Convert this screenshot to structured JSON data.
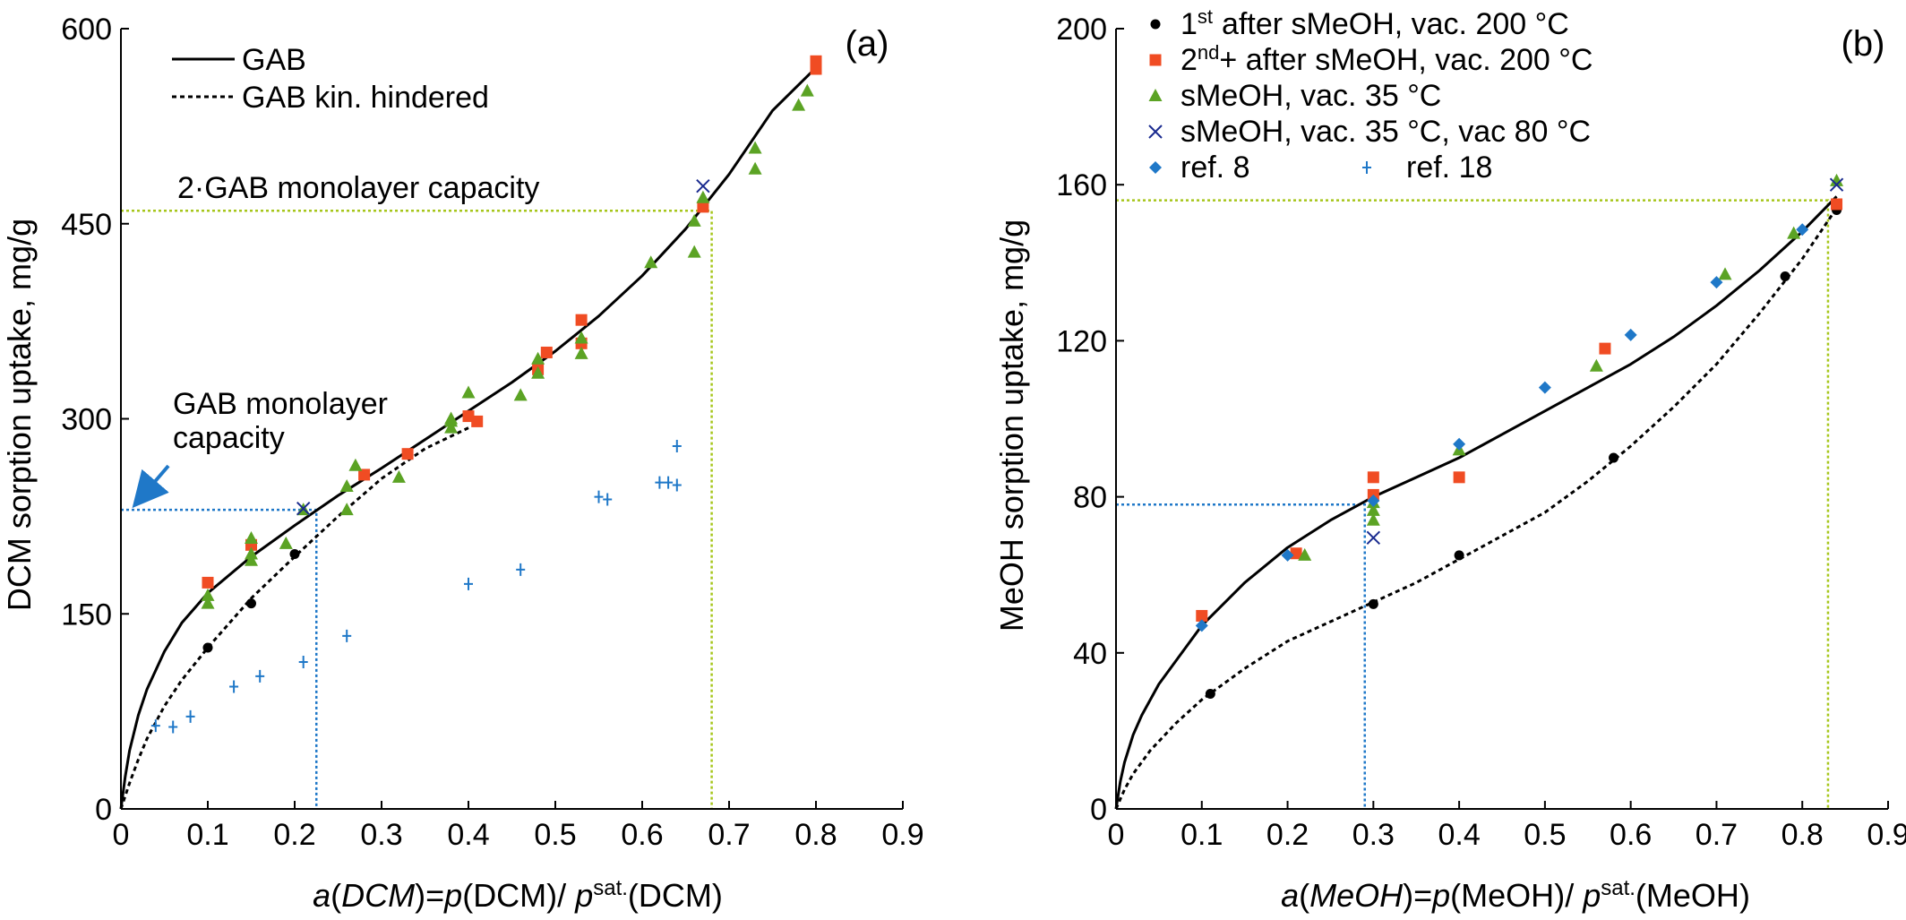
{
  "chart_data": [
    {
      "type": "scatter",
      "panel_label": "(a)",
      "xlabel": {
        "a": "a",
        "var": "DCM",
        "eq": "=",
        "p": "p",
        "gas": "DCM",
        "sep": "/ ",
        "p2": "p",
        "sup": "sat.",
        "gas2": "DCM"
      },
      "ylabel": "DCM sorption uptake, mg/g",
      "xlim": [
        0,
        0.9
      ],
      "ylim": [
        0,
        600
      ],
      "xticks": [
        "0",
        "0.1",
        "0.2",
        "0.3",
        "0.4",
        "0.5",
        "0.6",
        "0.7",
        "0.8",
        "0.9"
      ],
      "yticks": [
        "0",
        "150",
        "300",
        "450",
        "600"
      ],
      "legend": {
        "position": "top-left",
        "entries": [
          "GAB",
          "GAB kin. hindered"
        ]
      },
      "annotations": {
        "monolayer_label_line1": "GAB monolayer",
        "monolayer_label_line2": "capacity",
        "double_monolayer_label": "2·GAB monolayer capacity"
      },
      "monolayer": {
        "x": 0.225,
        "y": 230
      },
      "double_monolayer": {
        "x": 0.68,
        "y": 460
      },
      "colors": {
        "gab_line": "#000000",
        "kin_line": "#000000",
        "monolayer_guide": "#1f78c8",
        "double_guide": "#a6c61a",
        "arrow": "#1f78c8"
      },
      "lines": [
        {
          "name": "GAB",
          "style": "solid",
          "x": [
            0,
            0.005,
            0.01,
            0.02,
            0.03,
            0.05,
            0.07,
            0.1,
            0.15,
            0.2,
            0.25,
            0.3,
            0.35,
            0.4,
            0.45,
            0.5,
            0.55,
            0.6,
            0.65,
            0.7,
            0.75,
            0.8
          ],
          "y": [
            0,
            25,
            45,
            72,
            92,
            121,
            143,
            166,
            194,
            218,
            241,
            262,
            284,
            306,
            328,
            352,
            379,
            410,
            446,
            488,
            537,
            570
          ]
        },
        {
          "name": "GAB kin. hindered",
          "style": "dashed",
          "x": [
            0,
            0.01,
            0.02,
            0.03,
            0.05,
            0.07,
            0.1,
            0.15,
            0.2,
            0.25,
            0.3,
            0.35,
            0.4
          ],
          "y": [
            0,
            20,
            38,
            54,
            79,
            99,
            124,
            162,
            194,
            225,
            254,
            277,
            293
          ]
        }
      ],
      "series": [
        {
          "name": "1st after sMeOH, vac. 200 °C",
          "marker": "circle",
          "color": "#000000",
          "x": [
            0.1,
            0.15,
            0.2
          ],
          "y": [
            124,
            158,
            196
          ]
        },
        {
          "name": "2nd+ after sMeOH, vac. 200 °C",
          "marker": "square",
          "color": "#f04c23",
          "x": [
            0.1,
            0.15,
            0.28,
            0.33,
            0.4,
            0.41,
            0.48,
            0.49,
            0.53,
            0.53,
            0.67,
            0.8,
            0.8
          ],
          "y": [
            174,
            203,
            257,
            273,
            302,
            298,
            338,
            351,
            358,
            376,
            463,
            575,
            569
          ]
        },
        {
          "name": "sMeOH, vac. 35 °C",
          "marker": "triangle",
          "color": "#5ba324",
          "x": [
            0.1,
            0.1,
            0.15,
            0.15,
            0.15,
            0.19,
            0.21,
            0.26,
            0.26,
            0.27,
            0.32,
            0.38,
            0.38,
            0.38,
            0.4,
            0.46,
            0.48,
            0.48,
            0.53,
            0.53,
            0.61,
            0.66,
            0.66,
            0.67,
            0.73,
            0.73,
            0.78,
            0.79
          ],
          "y": [
            164,
            158,
            191,
            208,
            196,
            204,
            230,
            230,
            248,
            264,
            255,
            300,
            298,
            293,
            320,
            318,
            335,
            346,
            350,
            362,
            420,
            428,
            452,
            470,
            508,
            492,
            541,
            552
          ]
        },
        {
          "name": "sMeOH, vac. 35 °C, vac 80 °C",
          "marker": "x",
          "color": "#1a2b8f",
          "x": [
            0.21,
            0.67
          ],
          "y": [
            231,
            479
          ]
        },
        {
          "name": "ref. 18",
          "marker": "plus",
          "color": "#1f78c8",
          "x": [
            0.04,
            0.06,
            0.08,
            0.13,
            0.16,
            0.21,
            0.26,
            0.4,
            0.46,
            0.55,
            0.56,
            0.62,
            0.63,
            0.64,
            0.64
          ],
          "y": [
            64,
            63,
            71,
            94,
            102,
            113,
            133,
            173,
            184,
            240,
            238,
            251,
            251,
            249,
            279
          ]
        }
      ]
    },
    {
      "type": "scatter",
      "panel_label": "(b)",
      "xlabel": {
        "a": "a",
        "var": "MeOH",
        "eq": "=",
        "p": "p",
        "gas": "MeOH",
        "sep": "/ ",
        "p2": "p",
        "sup": "sat.",
        "gas2": "MeOH"
      },
      "ylabel": "MeOH sorption uptake, mg/g",
      "xlim": [
        0,
        0.9
      ],
      "ylim": [
        0,
        200
      ],
      "xticks": [
        "0",
        "0.1",
        "0.2",
        "0.3",
        "0.4",
        "0.5",
        "0.6",
        "0.7",
        "0.8",
        "0.9"
      ],
      "yticks": [
        "0",
        "40",
        "80",
        "120",
        "160",
        "200"
      ],
      "legend": {
        "position": "top-left",
        "entries": [
          {
            "text": "after sMeOH, vac. 200 °C",
            "prefix": "1",
            "sup": "st"
          },
          {
            "text": "+ after sMeOH, vac. 200 °C",
            "prefix": "2",
            "sup": "nd"
          },
          {
            "text": "sMeOH, vac. 35 °C"
          },
          {
            "text": "sMeOH, vac. 35 °C, vac 80 °C"
          },
          {
            "text": "ref. 8"
          },
          {
            "text": "ref. 18"
          }
        ]
      },
      "monolayer": {
        "x": 0.29,
        "y": 78
      },
      "double_monolayer": {
        "x": 0.83,
        "y": 156
      },
      "colors": {
        "gab_line": "#000000",
        "kin_line": "#000000",
        "monolayer_guide": "#1f78c8",
        "double_guide": "#a6c61a"
      },
      "lines": [
        {
          "name": "GAB",
          "style": "solid",
          "x": [
            0,
            0.005,
            0.01,
            0.02,
            0.03,
            0.05,
            0.07,
            0.1,
            0.15,
            0.2,
            0.25,
            0.3,
            0.35,
            0.4,
            0.45,
            0.5,
            0.55,
            0.6,
            0.65,
            0.7,
            0.75,
            0.8,
            0.84
          ],
          "y": [
            0,
            7,
            12,
            19,
            24,
            32,
            38,
            47,
            58,
            67,
            74,
            80,
            85,
            90,
            96,
            102,
            108,
            114,
            121,
            129,
            138,
            148,
            157
          ]
        },
        {
          "name": "GAB kin. hindered",
          "style": "dashed",
          "x": [
            0,
            0.01,
            0.02,
            0.04,
            0.07,
            0.1,
            0.15,
            0.2,
            0.25,
            0.3,
            0.35,
            0.4,
            0.45,
            0.5,
            0.55,
            0.6,
            0.65,
            0.7,
            0.75,
            0.8,
            0.84
          ],
          "y": [
            0,
            5,
            9,
            15,
            22,
            28,
            36,
            43,
            48,
            53,
            58,
            64,
            70,
            76,
            84,
            93,
            103,
            114,
            127,
            141,
            154
          ]
        }
      ],
      "series": [
        {
          "name": "1st after sMeOH, vac. 200 °C",
          "marker": "circle",
          "color": "#000000",
          "x": [
            0.11,
            0.3,
            0.4,
            0.58,
            0.78,
            0.84
          ],
          "y": [
            29.5,
            52.5,
            65,
            90,
            136.5,
            153.5
          ]
        },
        {
          "name": "2nd+ after sMeOH, vac. 200 °C",
          "marker": "square",
          "color": "#f04c23",
          "x": [
            0.1,
            0.21,
            0.3,
            0.3,
            0.4,
            0.57,
            0.84
          ],
          "y": [
            49.5,
            65.5,
            85,
            80.5,
            85,
            118,
            155
          ]
        },
        {
          "name": "sMeOH, vac. 35 °C",
          "marker": "triangle",
          "color": "#5ba324",
          "x": [
            0.22,
            0.3,
            0.3,
            0.3,
            0.4,
            0.56,
            0.71,
            0.79,
            0.84
          ],
          "y": [
            65,
            74,
            76.5,
            78.5,
            92,
            113.5,
            137,
            147.5,
            161
          ]
        },
        {
          "name": "sMeOH, vac. 35 °C, vac 80 °C",
          "marker": "x",
          "color": "#1a2b8f",
          "x": [
            0.3,
            0.84
          ],
          "y": [
            69.5,
            160
          ]
        },
        {
          "name": "ref. 8",
          "marker": "diamond",
          "color": "#1f78c8",
          "x": [
            0.1,
            0.2,
            0.3,
            0.4,
            0.5,
            0.6,
            0.7,
            0.8
          ],
          "y": [
            47,
            65,
            79,
            93.5,
            108,
            121.5,
            135,
            148.5
          ]
        }
      ]
    }
  ]
}
